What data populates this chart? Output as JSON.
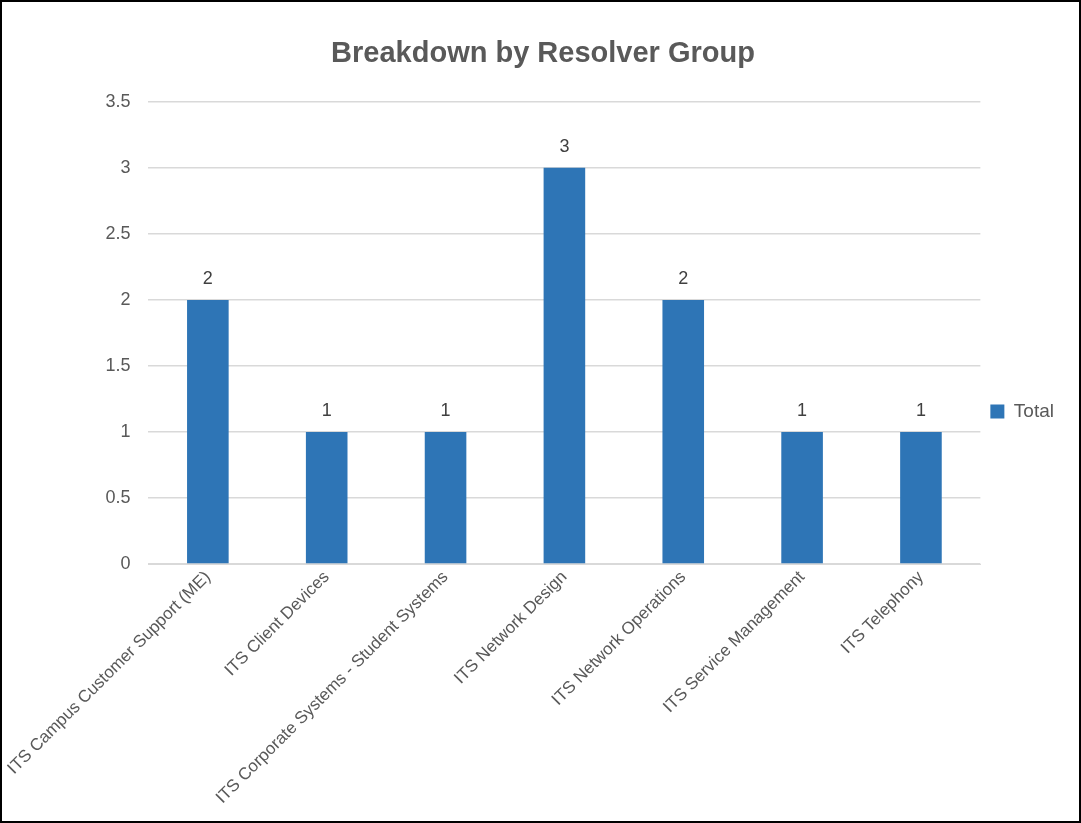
{
  "chart_data": {
    "type": "bar",
    "title": "Breakdown by Resolver Group",
    "categories": [
      "ITS Campus Customer Support (ME)",
      "ITS Client Devices",
      "ITS Corporate Systems - Student Systems",
      "ITS Network Design",
      "ITS Network Operations",
      "ITS Service Management",
      "ITS Telephony"
    ],
    "series": [
      {
        "name": "Total",
        "color": "#2e75b6",
        "values": [
          2,
          1,
          1,
          3,
          2,
          1,
          1
        ]
      }
    ],
    "ylim": [
      0,
      3.5
    ],
    "yticks": [
      0,
      0.5,
      1,
      1.5,
      2,
      2.5,
      3,
      3.5
    ],
    "grid": "y",
    "legend": "right",
    "data_labels": true
  }
}
